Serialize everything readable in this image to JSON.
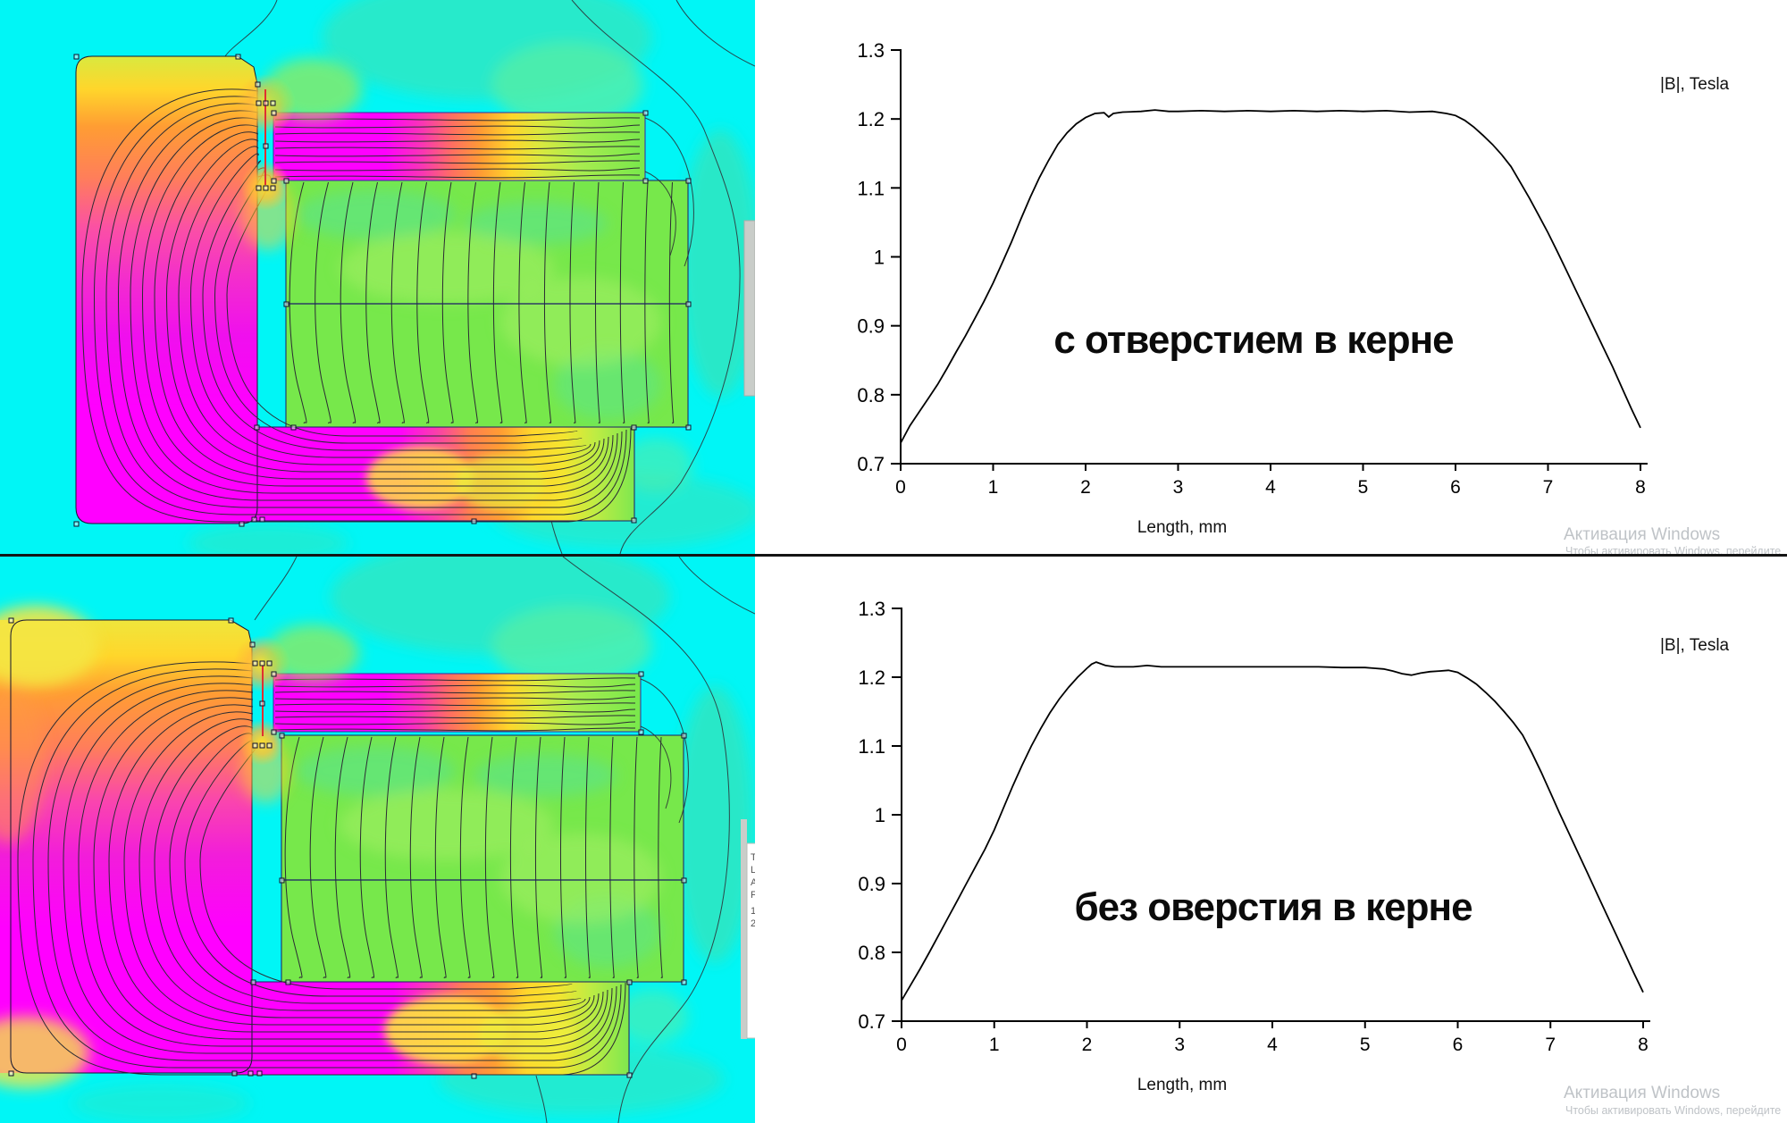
{
  "palette": {
    "cyan_bg": "#00F6F6",
    "teal": "#2DE7C3",
    "teal_light": "#55EDA7",
    "coil_green": "#77E84B",
    "green_light": "#A2EE62",
    "magenta": "#FF00FF",
    "pink": "#F747B4",
    "coral": "#FF6E62",
    "orange": "#FF9D33",
    "yellow": "#FFD62B",
    "yellow_green": "#D9E93F",
    "gap_red": "#E03030",
    "contour_dark": "#2B2B33",
    "boundary_blue": "#1B1B66",
    "scroll_gray": "#C9CDC9",
    "axis_black": "#000000",
    "watermark_gray": "#BFC3C7",
    "chart_bg": "#FFFFFF"
  },
  "sim_top": {
    "name": "field plot with hole in core"
  },
  "sim_bottom": {
    "name": "field plot without hole in core",
    "tooltip_chars": [
      "T",
      "L",
      "A",
      "F",
      "1",
      "2"
    ]
  },
  "watermark": {
    "line1": "Активация Windows",
    "line2": "Чтобы активировать Windows, перейдите"
  },
  "chart_data": [
    {
      "type": "line",
      "title": "с отверстием в керне",
      "ylabel": "|B|, Tesla",
      "xlabel": "Length, mm",
      "xlim": [
        0,
        8
      ],
      "ylim": [
        0.7,
        1.3
      ],
      "grid": false,
      "x_ticks": [
        "0",
        "1",
        "2",
        "3",
        "4",
        "5",
        "6",
        "7",
        "8"
      ],
      "y_ticks": [
        "1.3",
        "1.2",
        "1.1",
        "1",
        "0.9",
        "0.8",
        "0.7"
      ],
      "y_tick_values": [
        1.3,
        1.2,
        1.1,
        1.0,
        0.9,
        0.8,
        0.7
      ],
      "series": [
        {
          "name": "|B| along air gap, with hole in core",
          "x": [
            0,
            0.1,
            0.2,
            0.3,
            0.4,
            0.5,
            0.6,
            0.7,
            0.8,
            0.9,
            1,
            1.1,
            1.2,
            1.3,
            1.4,
            1.5,
            1.6,
            1.7,
            1.8,
            1.9,
            2,
            2.1,
            2.2,
            2.25,
            2.3,
            2.4,
            2.6,
            2.75,
            2.9,
            3,
            3.25,
            3.5,
            3.75,
            4,
            4.25,
            4.5,
            4.75,
            5,
            5.25,
            5.5,
            5.75,
            5.9,
            6,
            6.1,
            6.2,
            6.3,
            6.4,
            6.5,
            6.6,
            6.7,
            6.8,
            6.9,
            7,
            7.1,
            7.2,
            7.3,
            7.4,
            7.5,
            7.6,
            7.7,
            7.8,
            7.9,
            8
          ],
          "y": [
            0.73,
            0.755,
            0.775,
            0.795,
            0.815,
            0.838,
            0.862,
            0.885,
            0.91,
            0.935,
            0.962,
            0.992,
            1.022,
            1.055,
            1.086,
            1.115,
            1.14,
            1.163,
            1.18,
            1.193,
            1.202,
            1.208,
            1.209,
            1.203,
            1.208,
            1.21,
            1.211,
            1.213,
            1.211,
            1.211,
            1.212,
            1.211,
            1.212,
            1.211,
            1.212,
            1.211,
            1.212,
            1.211,
            1.212,
            1.21,
            1.211,
            1.208,
            1.205,
            1.198,
            1.188,
            1.176,
            1.163,
            1.148,
            1.131,
            1.108,
            1.085,
            1.06,
            1.035,
            1.008,
            0.98,
            0.952,
            0.924,
            0.896,
            0.868,
            0.84,
            0.81,
            0.78,
            0.752
          ]
        }
      ]
    },
    {
      "type": "line",
      "title": "без оверстия в керне",
      "ylabel": "|B|, Tesla",
      "xlabel": "Length, mm",
      "xlim": [
        0,
        8
      ],
      "ylim": [
        0.7,
        1.3
      ],
      "grid": false,
      "x_ticks": [
        "0",
        "1",
        "2",
        "3",
        "4",
        "5",
        "6",
        "7",
        "8"
      ],
      "y_ticks": [
        "1.3",
        "1.2",
        "1.1",
        "1",
        "0.9",
        "0.8",
        "0.7"
      ],
      "y_tick_values": [
        1.3,
        1.2,
        1.1,
        1.0,
        0.9,
        0.8,
        0.7
      ],
      "series": [
        {
          "name": "|B| along air gap, without hole in core",
          "x": [
            0,
            0.1,
            0.2,
            0.3,
            0.4,
            0.5,
            0.6,
            0.7,
            0.8,
            0.9,
            1,
            1.1,
            1.2,
            1.3,
            1.4,
            1.5,
            1.6,
            1.7,
            1.8,
            1.9,
            2,
            2.05,
            2.1,
            2.2,
            2.3,
            2.5,
            2.65,
            2.8,
            3,
            3.25,
            3.5,
            3.75,
            4,
            4.25,
            4.5,
            4.75,
            5,
            5.1,
            5.2,
            5.3,
            5.4,
            5.5,
            5.6,
            5.7,
            5.8,
            5.9,
            6,
            6.1,
            6.2,
            6.3,
            6.4,
            6.5,
            6.6,
            6.7,
            6.8,
            6.9,
            7,
            7.1,
            7.2,
            7.3,
            7.4,
            7.5,
            7.6,
            7.7,
            7.8,
            7.9,
            8
          ],
          "y": [
            0.73,
            0.753,
            0.776,
            0.8,
            0.825,
            0.85,
            0.875,
            0.9,
            0.925,
            0.95,
            0.978,
            1.01,
            1.042,
            1.072,
            1.1,
            1.125,
            1.148,
            1.168,
            1.185,
            1.2,
            1.213,
            1.219,
            1.222,
            1.217,
            1.215,
            1.215,
            1.217,
            1.215,
            1.215,
            1.215,
            1.215,
            1.215,
            1.215,
            1.215,
            1.215,
            1.214,
            1.214,
            1.213,
            1.212,
            1.209,
            1.205,
            1.203,
            1.206,
            1.208,
            1.209,
            1.21,
            1.207,
            1.199,
            1.19,
            1.178,
            1.165,
            1.15,
            1.134,
            1.116,
            1.09,
            1.062,
            1.032,
            1.002,
            0.973,
            0.944,
            0.915,
            0.886,
            0.857,
            0.828,
            0.799,
            0.77,
            0.742
          ]
        }
      ]
    }
  ]
}
